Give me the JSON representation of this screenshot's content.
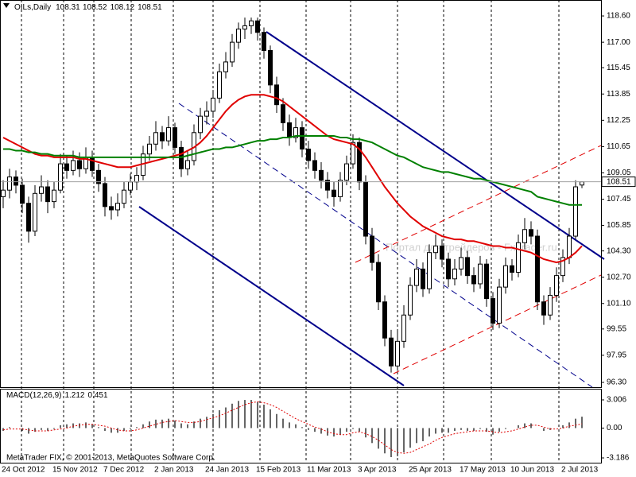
{
  "chart_data": [
    {
      "type": "candlestick",
      "title": "OILs,Daily",
      "color": "#000000",
      "up_fill": "#ffffff",
      "watermark": "Портал для трейдеров - FxTrader.ru",
      "categories": [
        "24 Oct 2012",
        null,
        null,
        null,
        null,
        null,
        null,
        null,
        "15 Nov 2012",
        null,
        null,
        null,
        null,
        null,
        null,
        null,
        "7 Dec 2012",
        null,
        null,
        null,
        null,
        null,
        null,
        null,
        "2 Jan 2013",
        null,
        null,
        null,
        null,
        null,
        null,
        null,
        "24 Jan 2013",
        null,
        null,
        null,
        null,
        null,
        null,
        null,
        "15 Feb 2013",
        null,
        null,
        null,
        null,
        null,
        null,
        null,
        "11 Mar 2013",
        null,
        null,
        null,
        null,
        null,
        null,
        null,
        "3 Apr 2013",
        null,
        null,
        null,
        null,
        null,
        null,
        null,
        "25 Apr 2013",
        null,
        null,
        null,
        null,
        null,
        null,
        null,
        "17 May 2013",
        null,
        null,
        null,
        null,
        null,
        null,
        null,
        "10 Jun 2013",
        null,
        null,
        null,
        null,
        null,
        null,
        null,
        "2 Jul 2013",
        null,
        null,
        null
      ],
      "ohlc": [
        [
          107.6,
          108.6,
          106.9,
          108.0
        ],
        [
          108.0,
          109.3,
          107.5,
          108.8
        ],
        [
          108.8,
          109.2,
          107.8,
          108.3
        ],
        [
          108.3,
          108.7,
          106.6,
          107.2
        ],
        [
          107.2,
          107.6,
          104.8,
          105.5
        ],
        [
          105.5,
          108.3,
          105.2,
          107.8
        ],
        [
          107.8,
          108.9,
          107.3,
          108.2
        ],
        [
          108.2,
          108.6,
          106.6,
          107.3
        ],
        [
          107.3,
          108.5,
          106.9,
          108.0
        ],
        [
          108.0,
          110.2,
          107.8,
          109.6
        ],
        [
          109.6,
          110.1,
          108.7,
          109.2
        ],
        [
          109.2,
          110.4,
          108.9,
          109.8
        ],
        [
          109.8,
          110.3,
          108.8,
          109.3
        ],
        [
          109.3,
          110.6,
          109.0,
          110.0
        ],
        [
          110.0,
          110.4,
          108.8,
          109.2
        ],
        [
          109.2,
          109.6,
          107.9,
          108.4
        ],
        [
          108.4,
          108.8,
          106.4,
          107.0
        ],
        [
          107.0,
          107.6,
          106.2,
          106.8
        ],
        [
          106.8,
          107.8,
          106.4,
          107.2
        ],
        [
          107.2,
          108.5,
          106.9,
          108.0
        ],
        [
          108.0,
          109.0,
          107.7,
          108.5
        ],
        [
          108.5,
          109.4,
          108.0,
          108.9
        ],
        [
          108.9,
          110.7,
          108.6,
          110.2
        ],
        [
          110.2,
          111.3,
          109.8,
          110.8
        ],
        [
          110.8,
          112.2,
          110.4,
          111.5
        ],
        [
          111.5,
          111.9,
          110.5,
          111.0
        ],
        [
          111.0,
          112.5,
          110.7,
          111.8
        ],
        [
          111.8,
          112.1,
          110.2,
          110.6
        ],
        [
          110.6,
          111.0,
          108.8,
          109.3
        ],
        [
          109.3,
          110.4,
          108.9,
          109.8
        ],
        [
          109.8,
          112.0,
          109.5,
          111.5
        ],
        [
          111.5,
          113.0,
          111.1,
          112.5
        ],
        [
          112.5,
          113.4,
          112.0,
          112.8
        ],
        [
          112.8,
          114.1,
          112.4,
          113.6
        ],
        [
          113.6,
          115.7,
          113.3,
          115.2
        ],
        [
          115.2,
          116.4,
          114.8,
          115.8
        ],
        [
          115.8,
          117.5,
          115.5,
          117.0
        ],
        [
          117.0,
          118.2,
          116.6,
          117.8
        ],
        [
          117.8,
          118.5,
          117.2,
          118.0
        ],
        [
          118.0,
          118.5,
          117.5,
          118.3
        ],
        [
          118.3,
          118.5,
          117.1,
          117.6
        ],
        [
          117.6,
          117.9,
          116.0,
          116.5
        ],
        [
          116.5,
          116.8,
          113.9,
          114.4
        ],
        [
          114.4,
          114.9,
          112.7,
          113.2
        ],
        [
          113.2,
          113.6,
          111.6,
          112.1
        ],
        [
          112.1,
          112.6,
          110.7,
          111.2
        ],
        [
          111.2,
          112.4,
          110.9,
          111.8
        ],
        [
          111.8,
          112.2,
          110.0,
          110.5
        ],
        [
          110.5,
          111.0,
          109.3,
          109.8
        ],
        [
          109.8,
          110.3,
          108.7,
          109.2
        ],
        [
          109.2,
          109.7,
          108.1,
          108.6
        ],
        [
          108.6,
          109.1,
          107.5,
          108.0
        ],
        [
          108.0,
          108.5,
          107.0,
          107.6
        ],
        [
          107.6,
          109.1,
          107.3,
          108.6
        ],
        [
          108.6,
          110.1,
          108.3,
          109.6
        ],
        [
          109.6,
          111.4,
          109.3,
          110.9
        ],
        [
          110.9,
          111.2,
          108.0,
          108.5
        ],
        [
          108.5,
          108.9,
          104.7,
          105.2
        ],
        [
          105.2,
          105.7,
          103.1,
          103.6
        ],
        [
          103.6,
          104.1,
          100.7,
          101.2
        ],
        [
          101.2,
          101.6,
          98.5,
          99.0
        ],
        [
          99.0,
          99.5,
          96.9,
          97.3
        ],
        [
          97.3,
          99.4,
          97.0,
          98.8
        ],
        [
          98.8,
          101.0,
          98.4,
          100.4
        ],
        [
          100.4,
          102.7,
          100.1,
          102.2
        ],
        [
          102.2,
          103.8,
          101.8,
          103.2
        ],
        [
          103.2,
          103.6,
          101.5,
          102.0
        ],
        [
          102.0,
          104.7,
          101.7,
          104.2
        ],
        [
          104.2,
          105.3,
          103.8,
          104.6
        ],
        [
          104.6,
          105.0,
          103.3,
          103.8
        ],
        [
          103.8,
          104.2,
          102.1,
          102.6
        ],
        [
          102.6,
          103.8,
          102.2,
          103.2
        ],
        [
          103.2,
          104.5,
          102.8,
          103.9
        ],
        [
          103.9,
          104.3,
          102.3,
          102.8
        ],
        [
          102.8,
          103.3,
          101.8,
          102.3
        ],
        [
          102.3,
          104.0,
          102.0,
          103.5
        ],
        [
          103.5,
          103.8,
          100.9,
          101.4
        ],
        [
          101.4,
          101.8,
          99.5,
          99.9
        ],
        [
          99.9,
          102.6,
          99.6,
          102.1
        ],
        [
          102.1,
          103.9,
          101.7,
          103.4
        ],
        [
          103.4,
          103.8,
          102.5,
          103.0
        ],
        [
          103.0,
          105.3,
          102.7,
          104.8
        ],
        [
          104.8,
          106.3,
          104.4,
          105.6
        ],
        [
          105.6,
          106.1,
          104.7,
          105.2
        ],
        [
          105.2,
          105.6,
          100.7,
          101.2
        ],
        [
          101.2,
          101.6,
          99.8,
          100.4
        ],
        [
          100.4,
          102.1,
          100.1,
          101.6
        ],
        [
          101.6,
          103.3,
          101.2,
          102.8
        ],
        [
          102.8,
          104.4,
          102.4,
          103.9
        ],
        [
          103.9,
          105.7,
          103.5,
          105.2
        ],
        [
          105.2,
          108.6,
          105.0,
          108.2
        ],
        [
          108.31,
          108.52,
          108.12,
          108.51
        ]
      ],
      "series": [
        {
          "color": "#e00000",
          "values": [
            111.2,
            111.0,
            110.8,
            110.6,
            110.4,
            110.2,
            110.1,
            110.1,
            110.0,
            110.0,
            110.0,
            110.0,
            109.9,
            109.9,
            109.8,
            109.7,
            109.6,
            109.5,
            109.4,
            109.4,
            109.4,
            109.5,
            109.6,
            109.7,
            109.8,
            109.9,
            110.0,
            110.1,
            110.2,
            110.4,
            110.6,
            110.9,
            111.3,
            111.8,
            112.3,
            112.8,
            113.2,
            113.5,
            113.7,
            113.8,
            113.8,
            113.8,
            113.7,
            113.6,
            113.4,
            113.1,
            112.8,
            112.5,
            112.2,
            111.9,
            111.6,
            111.3,
            111.1,
            111.0,
            110.9,
            110.8,
            110.5,
            110.0,
            109.4,
            108.8,
            108.2,
            107.7,
            107.2,
            106.8,
            106.4,
            106.1,
            105.8,
            105.6,
            105.4,
            105.2,
            105.1,
            105.0,
            105.0,
            104.9,
            104.9,
            104.8,
            104.7,
            104.6,
            104.6,
            104.5,
            104.5,
            104.4,
            104.3,
            104.2,
            104.0,
            103.8,
            103.7,
            103.6,
            103.7,
            103.9,
            104.2,
            104.6
          ]
        },
        {
          "color": "#008000",
          "values": [
            110.5,
            110.5,
            110.4,
            110.4,
            110.3,
            110.3,
            110.2,
            110.2,
            110.1,
            110.1,
            110.1,
            110.1,
            110.0,
            110.0,
            110.0,
            110.0,
            110.0,
            110.0,
            110.0,
            110.0,
            110.0,
            110.0,
            110.0,
            110.0,
            110.0,
            110.0,
            110.0,
            110.0,
            110.0,
            110.1,
            110.2,
            110.3,
            110.4,
            110.5,
            110.5,
            110.6,
            110.6,
            110.7,
            110.8,
            110.9,
            111.0,
            111.0,
            111.1,
            111.1,
            111.2,
            111.2,
            111.3,
            111.3,
            111.3,
            111.3,
            111.3,
            111.3,
            111.3,
            111.2,
            111.2,
            111.1,
            111.1,
            111.0,
            110.9,
            110.7,
            110.5,
            110.3,
            110.1,
            110.0,
            109.8,
            109.6,
            109.4,
            109.3,
            109.2,
            109.1,
            109.1,
            109.0,
            108.9,
            108.8,
            108.7,
            108.7,
            108.6,
            108.5,
            108.4,
            108.3,
            108.2,
            108.1,
            108.0,
            107.9,
            107.6,
            107.5,
            107.4,
            107.3,
            107.2,
            107.1,
            107.1,
            107.1
          ]
        }
      ],
      "ylim": [
        96.01,
        119.57
      ],
      "yticks": [
        {
          "value": 118.6,
          "label": "118.60"
        },
        {
          "value": 117,
          "label": "117.00"
        },
        115.45,
        113.85,
        112.25,
        110.65,
        109.05,
        107.45,
        105.85,
        {
          "value": 104.3,
          "label": "104.30"
        },
        {
          "value": 102.7,
          "label": "102.70"
        },
        {
          "value": 101.1,
          "label": "101.10"
        },
        99.55,
        97.95,
        {
          "value": 96.3,
          "label": "96.30"
        }
      ]
    },
    {
      "type": "macd",
      "title": "MACD(12,26,9)",
      "copyright": "MetaTrader FIX, © 2001-2013, MetaQuotes Software Corp.",
      "series": [
        {
          "style": "histogram",
          "color": "#000000",
          "values": [
            -0.3,
            0.1,
            0.0,
            -0.3,
            -0.6,
            -0.4,
            -0.2,
            -0.3,
            -0.1,
            0.3,
            0.4,
            0.5,
            0.5,
            0.6,
            0.4,
            0.1,
            -0.3,
            -0.5,
            -0.5,
            -0.3,
            -0.1,
            0.1,
            0.4,
            0.7,
            0.9,
            0.9,
            1.0,
            0.8,
            0.5,
            0.4,
            0.7,
            1.0,
            1.2,
            1.5,
            1.9,
            2.2,
            2.6,
            2.9,
            3.0,
            3.0,
            2.8,
            2.5,
            2.0,
            1.5,
            1.0,
            0.6,
            0.4,
            0.1,
            -0.2,
            -0.4,
            -0.6,
            -0.8,
            -0.9,
            -0.7,
            -0.4,
            -0.1,
            -0.4,
            -1.0,
            -1.6,
            -2.2,
            -2.7,
            -3.1,
            -3.0,
            -2.6,
            -2.1,
            -1.6,
            -1.4,
            -0.9,
            -0.6,
            -0.5,
            -0.5,
            -0.3,
            -0.2,
            -0.3,
            -0.3,
            -0.1,
            -0.4,
            -0.7,
            -0.4,
            -0.1,
            0.0,
            0.3,
            0.5,
            0.5,
            0.0,
            -0.3,
            -0.2,
            0.0,
            0.3,
            0.6,
            1.0,
            1.212
          ]
        },
        {
          "style": "dotted",
          "color": "#e00000",
          "values": [
            -0.2,
            -0.1,
            -0.1,
            -0.1,
            -0.2,
            -0.3,
            -0.3,
            -0.3,
            -0.2,
            -0.1,
            0.0,
            0.2,
            0.3,
            0.4,
            0.4,
            0.3,
            0.2,
            0.0,
            -0.2,
            -0.3,
            -0.3,
            -0.2,
            0.0,
            0.2,
            0.4,
            0.6,
            0.7,
            0.8,
            0.7,
            0.6,
            0.6,
            0.7,
            0.9,
            1.1,
            1.3,
            1.6,
            1.9,
            2.2,
            2.5,
            2.7,
            2.8,
            2.7,
            2.5,
            2.2,
            1.8,
            1.4,
            1.0,
            0.7,
            0.4,
            0.1,
            -0.1,
            -0.4,
            -0.6,
            -0.7,
            -0.7,
            -0.5,
            -0.4,
            -0.6,
            -0.9,
            -1.3,
            -1.8,
            -2.3,
            -2.6,
            -2.7,
            -2.6,
            -2.3,
            -2.0,
            -1.7,
            -1.3,
            -1.0,
            -0.8,
            -0.6,
            -0.5,
            -0.4,
            -0.3,
            -0.3,
            -0.3,
            -0.4,
            -0.5,
            -0.4,
            -0.3,
            -0.1,
            0.1,
            0.3,
            0.3,
            0.1,
            -0.1,
            -0.1,
            0.0,
            0.2,
            0.3,
            0.451
          ]
        }
      ],
      "ylim": [
        -3.186,
        3.006
      ],
      "yticks": [
        3.006,
        {
          "value": 0,
          "label": "0.00"
        },
        -3.186
      ]
    }
  ]
}
